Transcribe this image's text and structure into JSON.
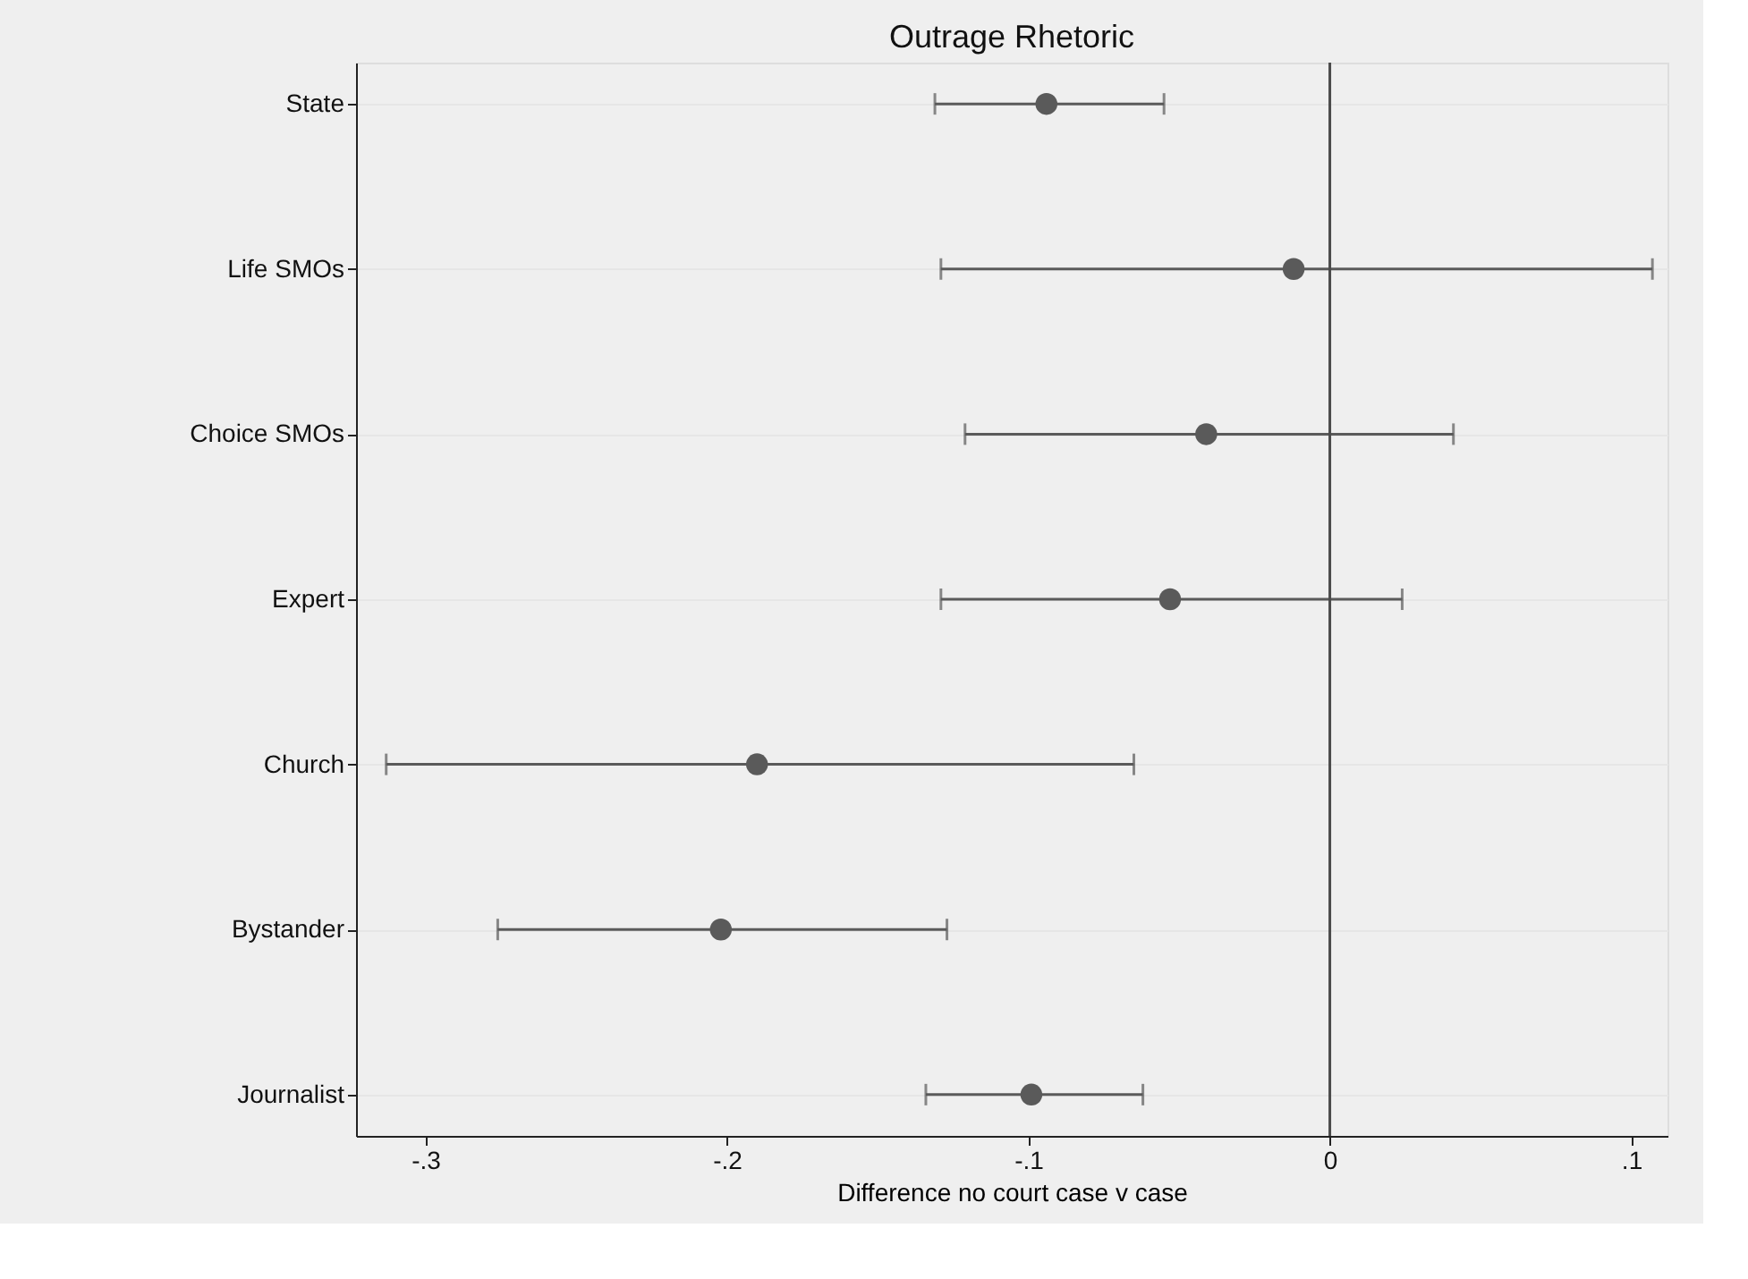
{
  "chart_data": {
    "type": "scatter",
    "title": "Outrage Rhetoric",
    "xlabel": "Difference no court case v case",
    "categories": [
      "State",
      "Life SMOs",
      "Choice SMOs",
      "Expert",
      "Church",
      "Bystander",
      "Journalist"
    ],
    "orientation": "horizontal",
    "values": [
      -0.094,
      -0.012,
      -0.041,
      -0.053,
      -0.19,
      -0.202,
      -0.099
    ],
    "errors": [
      [
        -0.131,
        -0.055
      ],
      [
        -0.129,
        0.107
      ],
      [
        -0.121,
        0.041
      ],
      [
        -0.129,
        0.024
      ],
      [
        -0.313,
        -0.065
      ],
      [
        -0.276,
        -0.127
      ],
      [
        -0.134,
        -0.062
      ]
    ],
    "color": "#5a5a5a",
    "marker": "circle",
    "grid": "y",
    "xlim": [
      -0.323,
      0.112
    ],
    "xticks": [
      {
        "value": -0.3,
        "label": "-.3"
      },
      {
        "value": -0.2,
        "label": "-.2"
      },
      {
        "value": -0.1,
        "label": "-.1"
      },
      0,
      {
        "value": 0.1,
        "label": ".1"
      }
    ],
    "ref_lines": [
      {
        "axis": "x",
        "value": 0,
        "color": "#4a4a4a"
      }
    ]
  }
}
